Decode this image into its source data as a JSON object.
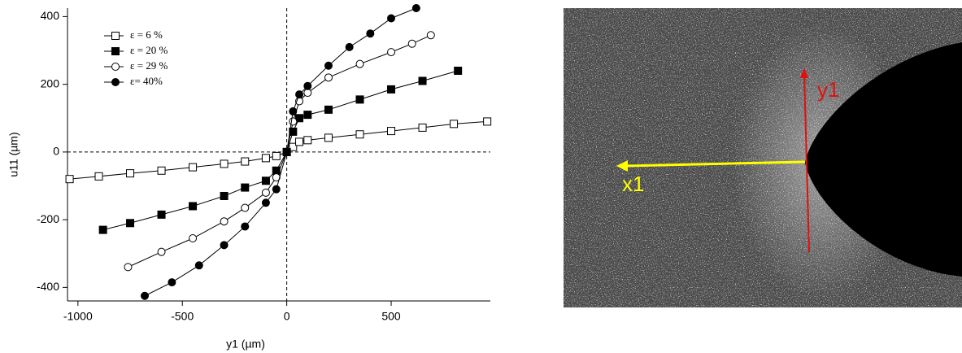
{
  "chart_data": {
    "type": "line",
    "x_label": "y1 (µm)",
    "y_label": "u11 (µm)",
    "xlim": [
      -1050,
      975
    ],
    "ylim": [
      -440,
      425
    ],
    "xticks": [
      -1000,
      -500,
      0,
      500
    ],
    "yticks": [
      -400,
      -200,
      0,
      200,
      400
    ],
    "legend": "top-left",
    "series": [
      {
        "name": "ε = 6 %",
        "color": "#000000",
        "marker": "square-open",
        "x": [
          -1040,
          -900,
          -750,
          -600,
          -450,
          -300,
          -200,
          -100,
          -50,
          0,
          30,
          60,
          100,
          200,
          350,
          500,
          650,
          800,
          960
        ],
        "values": [
          -80,
          -72,
          -63,
          -55,
          -45,
          -35,
          -28,
          -18,
          -12,
          0,
          15,
          30,
          35,
          42,
          52,
          62,
          72,
          83,
          90
        ]
      },
      {
        "name": "ε = 20 %",
        "color": "#000000",
        "marker": "square-filled",
        "x": [
          -880,
          -750,
          -600,
          -450,
          -300,
          -200,
          -100,
          -50,
          0,
          30,
          60,
          100,
          200,
          350,
          500,
          650,
          820
        ],
        "values": [
          -230,
          -210,
          -185,
          -160,
          -130,
          -105,
          -85,
          -55,
          0,
          60,
          100,
          110,
          125,
          155,
          185,
          210,
          240
        ]
      },
      {
        "name": "ε = 29 %",
        "color": "#000000",
        "marker": "circle-open",
        "x": [
          -760,
          -600,
          -450,
          -300,
          -200,
          -100,
          -50,
          0,
          30,
          60,
          100,
          200,
          350,
          500,
          600,
          690
        ],
        "values": [
          -340,
          -295,
          -255,
          -205,
          -165,
          -120,
          -75,
          0,
          90,
          150,
          175,
          220,
          260,
          295,
          320,
          345
        ]
      },
      {
        "name": "ε= 40%",
        "color": "#000000",
        "marker": "circle-filled",
        "x": [
          -680,
          -550,
          -420,
          -300,
          -200,
          -100,
          -50,
          0,
          30,
          60,
          100,
          200,
          300,
          400,
          500,
          620
        ],
        "values": [
          -425,
          -385,
          -335,
          -275,
          -220,
          -150,
          -110,
          0,
          120,
          170,
          195,
          255,
          310,
          350,
          395,
          425
        ]
      }
    ]
  },
  "image_labels": {
    "vertical_arrow": "y1",
    "horizontal_arrow": "x1"
  }
}
